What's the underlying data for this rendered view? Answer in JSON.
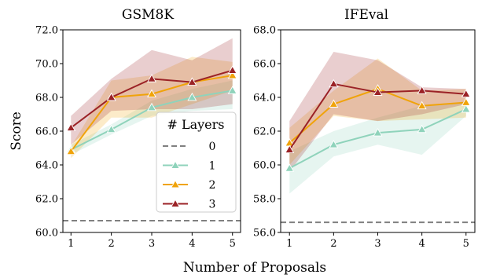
{
  "figure": {
    "xlabel": "Number of Proposals",
    "ylabel": "Score"
  },
  "legend": {
    "title": "# Layers",
    "entries": [
      "0",
      "1",
      "2",
      "3"
    ],
    "placement": "lower-right of GSM8K panel"
  },
  "colors": {
    "0": "#808080",
    "1": "#8fd3bb",
    "2": "#f0a30a",
    "3": "#9b2226"
  },
  "chart_data": [
    {
      "type": "line",
      "title": "GSM8K",
      "xlabel": "Number of Proposals",
      "ylabel": "Score",
      "x": [
        1,
        2,
        3,
        4,
        5
      ],
      "xlim": [
        0.8,
        5.2
      ],
      "ylim": [
        60.0,
        72.0
      ],
      "yticks": [
        "60.0",
        "62.0",
        "64.0",
        "66.0",
        "68.0",
        "70.0",
        "72.0"
      ],
      "xticks": [
        "1",
        "2",
        "3",
        "4",
        "5"
      ],
      "grid": false,
      "baseline": {
        "name": "0",
        "value": 60.7
      },
      "series": [
        {
          "name": "1",
          "values": [
            64.9,
            66.1,
            67.4,
            68.0,
            68.4
          ],
          "lower": [
            64.6,
            65.8,
            66.9,
            67.2,
            67.3
          ],
          "upper": [
            65.2,
            66.4,
            67.8,
            68.5,
            69.0
          ]
        },
        {
          "name": "2",
          "values": [
            64.8,
            68.0,
            68.2,
            68.9,
            69.3
          ],
          "lower": [
            64.4,
            66.8,
            66.8,
            67.6,
            68.4
          ],
          "upper": [
            65.1,
            69.0,
            69.3,
            70.4,
            70.1
          ]
        },
        {
          "name": "3",
          "values": [
            66.2,
            68.0,
            69.1,
            68.9,
            69.6
          ],
          "lower": [
            65.2,
            67.2,
            67.3,
            67.3,
            67.6
          ],
          "upper": [
            66.9,
            69.1,
            70.8,
            70.2,
            71.5
          ]
        }
      ]
    },
    {
      "type": "line",
      "title": "IFEval",
      "xlabel": "Number of Proposals",
      "ylabel": "",
      "x": [
        1,
        2,
        3,
        4,
        5
      ],
      "xlim": [
        0.8,
        5.2
      ],
      "ylim": [
        56.0,
        68.0
      ],
      "yticks": [
        "56.0",
        "58.0",
        "60.0",
        "62.0",
        "64.0",
        "66.0",
        "68.0"
      ],
      "xticks": [
        "1",
        "2",
        "3",
        "4",
        "5"
      ],
      "grid": false,
      "baseline": {
        "name": "0",
        "value": 56.6
      },
      "series": [
        {
          "name": "1",
          "values": [
            59.8,
            61.2,
            61.9,
            62.1,
            63.3
          ],
          "lower": [
            58.3,
            60.5,
            61.2,
            60.6,
            62.9
          ],
          "upper": [
            60.8,
            62.0,
            62.8,
            63.5,
            63.7
          ]
        },
        {
          "name": "2",
          "values": [
            61.3,
            63.6,
            64.5,
            63.5,
            63.7
          ],
          "lower": [
            60.0,
            62.9,
            62.6,
            62.7,
            62.8
          ],
          "upper": [
            62.2,
            64.4,
            66.3,
            64.4,
            64.5
          ]
        },
        {
          "name": "3",
          "values": [
            60.9,
            64.8,
            64.3,
            64.4,
            64.2
          ],
          "lower": [
            59.6,
            63.0,
            62.6,
            63.0,
            63.6
          ],
          "upper": [
            62.6,
            66.7,
            66.2,
            64.6,
            64.5
          ]
        }
      ]
    }
  ]
}
